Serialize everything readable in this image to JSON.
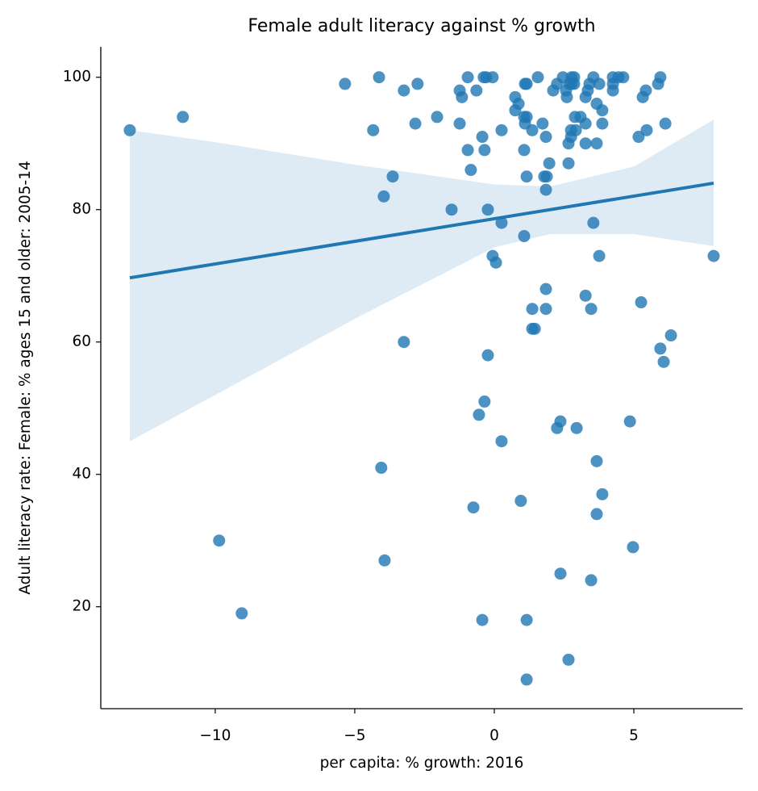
{
  "chart_data": {
    "type": "scatter",
    "title": "Female adult literacy against % growth",
    "x_label": "per capita: % growth: 2016",
    "y_label": "Adult literacy rate: Female: % ages 15 and older: 2005-14",
    "color": "#1f77b4",
    "x": [
      -13.06,
      -11.16,
      -5.35,
      -4.13,
      -4.34,
      -3.24,
      -2.75,
      -2.83,
      -2.05,
      -3.64,
      -3.96,
      -1.53,
      -0.95,
      -1.24,
      -1.16,
      -1.24,
      -0.95,
      -0.84,
      -0.64,
      -0.38,
      -0.29,
      -0.06,
      -0.43,
      -0.35,
      -0.23,
      0.26,
      0.26,
      -0.06,
      0.06,
      0.75,
      0.75,
      0.87,
      1.16,
      1.1,
      1.07,
      1.1,
      1.16,
      1.07,
      1.16,
      1.36,
      1.56,
      1.73,
      1.85,
      1.97,
      1.79,
      1.88,
      1.85,
      1.07,
      2.11,
      2.25,
      2.46,
      2.57,
      2.6,
      2.69,
      2.77,
      2.86,
      2.77,
      2.86,
      2.66,
      2.75,
      2.75,
      2.92,
      2.89,
      2.66,
      3.09,
      3.27,
      3.27,
      3.27,
      3.35,
      3.41,
      3.55,
      3.67,
      3.76,
      3.67,
      3.87,
      3.87,
      3.55,
      3.76,
      4.25,
      4.25,
      4.45,
      4.62,
      4.25,
      5.17,
      5.32,
      5.43,
      5.87,
      5.95,
      5.46,
      6.13,
      7.86,
      1.85,
      1.85,
      1.36,
      1.36,
      1.45,
      3.27,
      3.47,
      5.26,
      6.33,
      5.95,
      6.07,
      -3.24,
      -0.23,
      -0.35,
      -0.55,
      0.26,
      2.37,
      2.25,
      2.95,
      4.86,
      3.67,
      3.87,
      3.67,
      -4.05,
      -0.75,
      0.95,
      -9.86,
      -3.93,
      4.97,
      2.37,
      3.47,
      -9.05,
      -0.43,
      1.16,
      2.66,
      1.16
    ],
    "y": [
      92,
      94,
      99,
      100,
      92,
      98,
      99,
      93,
      94,
      85,
      82,
      80,
      100,
      98,
      97,
      93,
      89,
      86,
      98,
      100,
      100,
      100,
      91,
      89,
      80,
      92,
      78,
      73,
      72,
      97,
      95,
      96,
      99,
      99,
      94,
      93,
      94,
      89,
      85,
      92,
      100,
      93,
      91,
      87,
      85,
      85,
      83,
      76,
      98,
      99,
      100,
      98,
      97,
      99,
      100,
      100,
      99,
      99,
      90,
      91,
      92,
      92,
      94,
      87,
      94,
      90,
      93,
      97,
      98,
      99,
      100,
      96,
      99,
      90,
      95,
      93,
      78,
      73,
      98,
      100,
      100,
      100,
      99,
      91,
      97,
      98,
      99,
      100,
      92,
      93,
      73,
      68,
      65,
      65,
      62,
      62,
      67,
      65,
      66,
      61,
      59,
      57,
      60,
      58,
      51,
      49,
      45,
      48,
      47,
      47,
      48,
      42,
      37,
      34,
      41,
      35,
      36,
      30,
      27,
      29,
      25,
      24,
      19,
      18,
      18,
      12,
      9
    ],
    "regression": {
      "x": [
        -13.06,
        7.86
      ],
      "y": [
        69.7,
        84.0
      ]
    },
    "band": {
      "x": [
        -13.06,
        -10,
        -5,
        0,
        2,
        5,
        7.86
      ],
      "upper": [
        92,
        90.2,
        86.8,
        83.8,
        83.5,
        86.5,
        93.6
      ],
      "lower": [
        45,
        52,
        63.5,
        74.3,
        76.3,
        76.3,
        74.5
      ]
    },
    "xlim": [
      -14.1,
      8.9
    ],
    "ylim": [
      4.6,
      104.6
    ],
    "xticks": [
      {
        "value": -10,
        "label": "−10"
      },
      {
        "value": -5,
        "label": "−5"
      },
      0,
      5
    ],
    "yticks": [
      20,
      40,
      60,
      80,
      100
    ],
    "grid": false
  }
}
